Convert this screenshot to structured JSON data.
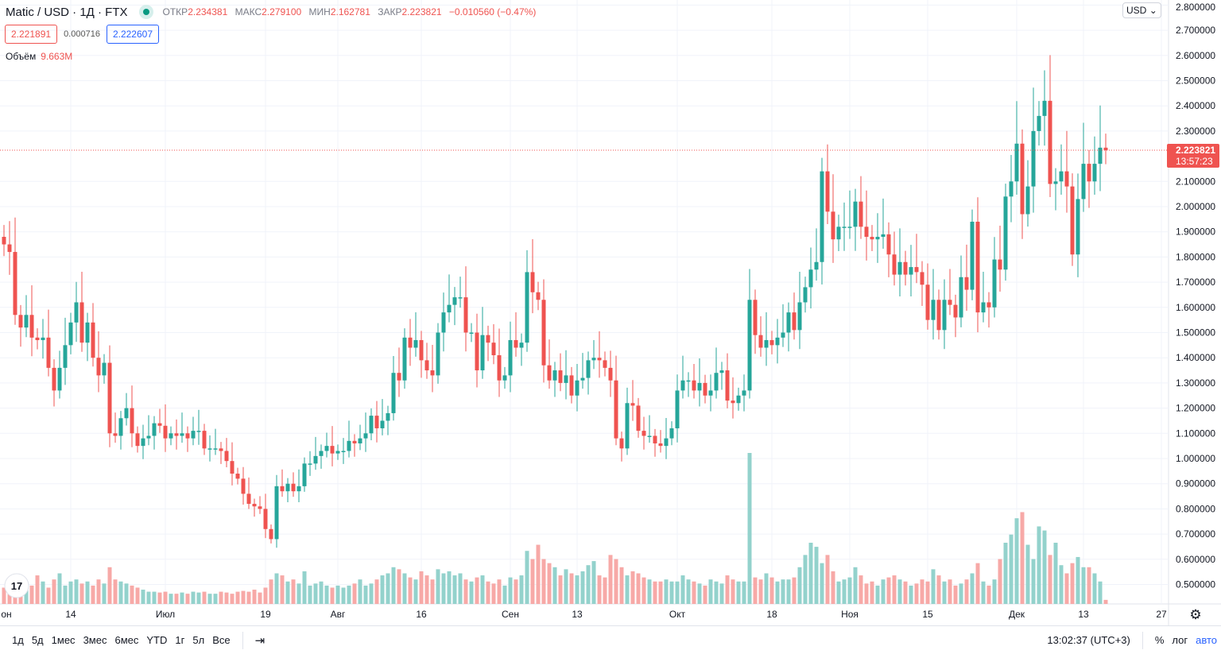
{
  "header": {
    "symbol": "Matic / USD · 1Д · FTX",
    "open_label": "ОТКР",
    "open": "2.234381",
    "high_label": "МАКС",
    "high": "2.279100",
    "low_label": "МИН",
    "low": "2.162781",
    "close_label": "ЗАКР",
    "close": "2.223821",
    "change": "−0.010560 (−0.47%)",
    "bid": "2.221891",
    "spread": "0.000716",
    "ask": "2.222607",
    "volume_label": "Объём",
    "volume": "9.663M",
    "currency": "USD"
  },
  "colors": {
    "up": "#26a69a",
    "down": "#ef5350",
    "up_vol": "#93d2cc",
    "down_vol": "#f7a9a7",
    "grid": "#f0f3fa"
  },
  "chart_data": {
    "type": "candlestick",
    "title": "Matic / USD · 1Д · FTX",
    "ylim": [
      0.45,
      2.85
    ],
    "y_ticks": [
      "2.800000",
      "2.700000",
      "2.600000",
      "2.500000",
      "2.400000",
      "2.300000",
      "2.100000",
      "2.000000",
      "1.900000",
      "1.800000",
      "1.700000",
      "1.600000",
      "1.500000",
      "1.400000",
      "1.300000",
      "1.200000",
      "1.100000",
      "1.000000",
      "0.900000",
      "0.800000",
      "0.700000",
      "0.600000",
      "0.500000"
    ],
    "current_price": "2.223821",
    "countdown": "13:57:23",
    "first_open": 1.88,
    "wick_fraction": 0.025,
    "close": [
      1.85,
      1.82,
      1.57,
      1.52,
      1.57,
      1.48,
      1.47,
      1.48,
      1.36,
      1.27,
      1.36,
      1.45,
      1.54,
      1.62,
      1.46,
      1.54,
      1.4,
      1.33,
      1.38,
      1.1,
      1.09,
      1.16,
      1.2,
      1.1,
      1.05,
      1.08,
      1.09,
      1.14,
      1.13,
      1.08,
      1.1,
      1.09,
      1.1,
      1.08,
      1.11,
      1.11,
      1.04,
      1.04,
      1.04,
      1.03,
      0.99,
      0.94,
      0.92,
      0.86,
      0.82,
      0.81,
      0.8,
      0.72,
      0.68,
      0.89,
      0.87,
      0.9,
      0.87,
      0.89,
      0.98,
      0.98,
      1.01,
      1.03,
      1.05,
      1.02,
      1.03,
      1.03,
      1.07,
      1.06,
      1.08,
      1.1,
      1.17,
      1.12,
      1.15,
      1.18,
      1.34,
      1.31,
      1.48,
      1.44,
      1.47,
      1.39,
      1.35,
      1.33,
      1.5,
      1.58,
      1.61,
      1.64,
      1.64,
      1.5,
      1.5,
      1.35,
      1.49,
      1.46,
      1.41,
      1.31,
      1.33,
      1.47,
      1.44,
      1.46,
      1.74,
      1.66,
      1.63,
      1.37,
      1.31,
      1.35,
      1.3,
      1.33,
      1.25,
      1.31,
      1.32,
      1.39,
      1.4,
      1.39,
      1.36,
      1.31,
      1.08,
      1.04,
      1.22,
      1.21,
      1.11,
      1.09,
      1.09,
      1.06,
      1.05,
      1.08,
      1.12,
      1.27,
      1.31,
      1.31,
      1.27,
      1.3,
      1.25,
      1.27,
      1.34,
      1.35,
      1.23,
      1.22,
      1.25,
      1.27,
      1.63,
      1.49,
      1.44,
      1.47,
      1.45,
      1.48,
      1.5,
      1.58,
      1.51,
      1.62,
      1.68,
      1.75,
      1.78,
      2.14,
      1.98,
      1.87,
      1.92,
      1.92,
      1.92,
      2.02,
      1.92,
      1.88,
      1.87,
      1.88,
      1.89,
      1.81,
      1.73,
      1.78,
      1.73,
      1.76,
      1.74,
      1.69,
      1.55,
      1.63,
      1.51,
      1.63,
      1.61,
      1.56,
      1.72,
      1.67,
      1.94,
      1.58,
      1.62,
      1.6,
      1.79,
      1.75,
      2.04,
      2.1,
      2.25,
      1.97,
      2.08,
      2.3,
      2.36,
      2.42,
      2.09,
      2.1,
      2.14,
      2.08,
      1.81,
      2.03,
      2.17,
      2.1,
      2.17,
      2.234,
      2.2238
    ],
    "volume_millions": [
      40,
      55,
      60,
      45,
      50,
      45,
      70,
      55,
      40,
      60,
      75,
      45,
      55,
      60,
      50,
      55,
      45,
      60,
      50,
      90,
      60,
      55,
      50,
      45,
      40,
      35,
      30,
      30,
      28,
      30,
      25,
      25,
      28,
      25,
      30,
      28,
      30,
      25,
      25,
      30,
      28,
      25,
      30,
      32,
      30,
      35,
      28,
      40,
      60,
      75,
      70,
      55,
      60,
      50,
      80,
      45,
      50,
      55,
      45,
      40,
      45,
      40,
      45,
      50,
      60,
      45,
      50,
      60,
      70,
      75,
      90,
      85,
      75,
      65,
      60,
      80,
      70,
      60,
      85,
      75,
      80,
      70,
      75,
      60,
      55,
      65,
      70,
      55,
      50,
      60,
      45,
      65,
      60,
      70,
      130,
      110,
      145,
      110,
      100,
      90,
      70,
      85,
      75,
      70,
      80,
      95,
      105,
      70,
      65,
      120,
      110,
      90,
      70,
      80,
      75,
      65,
      60,
      55,
      55,
      60,
      55,
      55,
      70,
      60,
      55,
      50,
      45,
      60,
      55,
      50,
      70,
      60,
      55,
      55,
      370,
      65,
      60,
      75,
      65,
      55,
      60,
      60,
      65,
      90,
      120,
      150,
      140,
      100,
      120,
      80,
      55,
      60,
      65,
      90,
      70,
      50,
      55,
      45,
      60,
      65,
      70,
      60,
      55,
      45,
      50,
      60,
      55,
      85,
      70,
      55,
      60,
      45,
      50,
      60,
      75,
      100,
      55,
      45,
      60,
      110,
      150,
      170,
      210,
      225,
      145,
      110,
      190,
      180,
      120,
      150,
      95,
      75,
      100,
      115,
      90,
      90,
      75,
      55,
      10
    ],
    "x_ticks": [
      {
        "label": "он",
        "day": -1
      },
      {
        "label": "14",
        "day": 12
      },
      {
        "label": "Июл",
        "day": 29
      },
      {
        "label": "19",
        "day": 47
      },
      {
        "label": "Авг",
        "day": 60
      },
      {
        "label": "16",
        "day": 75
      },
      {
        "label": "Сен",
        "day": 91
      },
      {
        "label": "13",
        "day": 103
      },
      {
        "label": "Окт",
        "day": 121
      },
      {
        "label": "18",
        "day": 138
      },
      {
        "label": "Ноя",
        "day": 152
      },
      {
        "label": "15",
        "day": 166
      },
      {
        "label": "Дек",
        "day": 182
      },
      {
        "label": "13",
        "day": 194
      },
      {
        "label": "27",
        "day": 208
      }
    ]
  },
  "toolbar": {
    "ranges": [
      "1д",
      "5д",
      "1мес",
      "3мес",
      "6мес",
      "YTD",
      "1г",
      "5л",
      "Все"
    ],
    "time": "13:02:37 (UTC+3)",
    "percent": "%",
    "log": "лог",
    "auto": "авто"
  }
}
